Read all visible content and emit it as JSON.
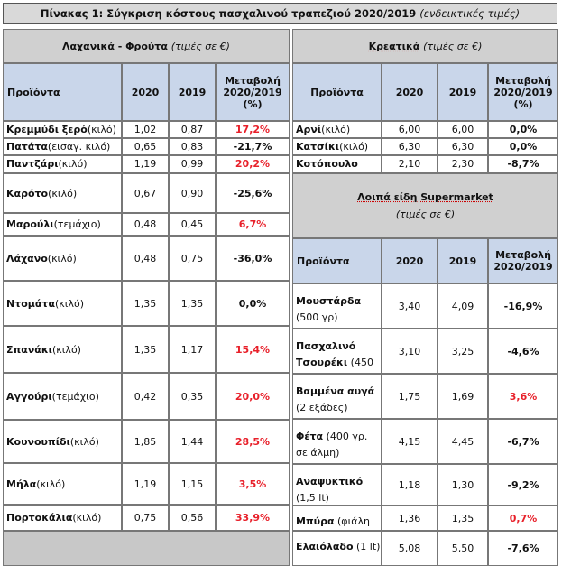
{
  "title": {
    "main": "Πίνακας 1: Σύγκριση κόστους πασχαλινού τραπεζιού 2020/2019",
    "note": "(ενδεικτικές τιμές)"
  },
  "left": {
    "header": "Λαχανικά - Φρούτα",
    "header_note": "(τιμές σε €)",
    "col_product": "Προϊόντα",
    "col_2020": "2020",
    "col_2019": "2019",
    "col_change": "Μεταβολή 2020/2019 (%)",
    "rows": [
      {
        "name": "Κρεμμύδι ξερό",
        "unit": "(κιλό)",
        "v2020": "1,02",
        "v2019": "0,87",
        "change": "17,2%",
        "color": "#e8202a"
      },
      {
        "name": "Πατάτα",
        "unit": "(εισαγ. κιλό)",
        "v2020": "0,65",
        "v2019": "0,83",
        "change": "-21,7%",
        "color": "#111111"
      },
      {
        "name": "Παντζάρι",
        "unit": "(κιλό)",
        "v2020": "1,19",
        "v2019": "0,99",
        "change": "20,2%",
        "color": "#e8202a"
      },
      {
        "name": "Καρότο",
        "unit": "(κιλό)",
        "v2020": "0,67",
        "v2019": "0,90",
        "change": "-25,6%",
        "color": "#111111"
      },
      {
        "name": "Μαρούλι",
        "unit": "(τεμάχιο)",
        "v2020": "0,48",
        "v2019": "0,45",
        "change": "6,7%",
        "color": "#e8202a"
      },
      {
        "name": "Λάχανο",
        "unit": "(κιλό)",
        "v2020": "0,48",
        "v2019": "0,75",
        "change": "-36,0%",
        "color": "#111111"
      },
      {
        "name": "Ντομάτα",
        "unit": "(κιλό)",
        "v2020": "1,35",
        "v2019": "1,35",
        "change": "0,0%",
        "color": "#111111"
      },
      {
        "name": "Σπανάκι",
        "unit": "(κιλό)",
        "v2020": "1,35",
        "v2019": "1,17",
        "change": "15,4%",
        "color": "#e8202a"
      },
      {
        "name": "Αγγούρι",
        "unit": "(τεμάχιο)",
        "v2020": "0,42",
        "v2019": "0,35",
        "change": "20,0%",
        "color": "#e8202a"
      },
      {
        "name": "Κουνουπίδι",
        "unit": "(κιλό)",
        "v2020": "1,85",
        "v2019": "1,44",
        "change": "28,5%",
        "color": "#e8202a"
      },
      {
        "name": "Μήλα",
        "unit": "(κιλό)",
        "v2020": "1,19",
        "v2019": "1,15",
        "change": "3,5%",
        "color": "#e8202a"
      },
      {
        "name": "Πορτοκάλια",
        "unit": "(κιλό)",
        "v2020": "0,75",
        "v2019": "0,56",
        "change": "33,9%",
        "color": "#e8202a"
      }
    ]
  },
  "meat": {
    "header": "Κρεατικά",
    "header_note": "(τιμές σε €)",
    "col_product": "Προϊόντα",
    "col_2020": "2020",
    "col_2019": "2019",
    "col_change": "Μεταβολή 2020/2019 (%)",
    "rows": [
      {
        "name": "Αρνί",
        "unit": "(κιλό)",
        "v2020": "6,00",
        "v2019": "6,00",
        "change": "0,0%",
        "color": "#111111"
      },
      {
        "name": "Κατσίκι",
        "unit": "(κιλό)",
        "v2020": "6,30",
        "v2019": "6,30",
        "change": "0,0%",
        "color": "#111111"
      },
      {
        "name": "Κοτόπουλο",
        "unit": "",
        "v2020": "2,10",
        "v2019": "2,30",
        "change": "-8,7%",
        "color": "#111111"
      }
    ]
  },
  "super": {
    "header": "Λοιπά είδη Supermarket",
    "header_note": "(τιμές σε €)",
    "col_product": "Προϊόντα",
    "col_2020": "2020",
    "col_2019": "2019",
    "col_change": "Μεταβολή 2020/2019",
    "rows": [
      {
        "name": "Μουστάρδα",
        "unit": "(500 γρ)",
        "v2020": "3,40",
        "v2019": "4,09",
        "change": "-16,9%",
        "color": "#111111"
      },
      {
        "name": "Πασχαλινό Τσουρέκι",
        "unit": "(450",
        "v2020": "3,10",
        "v2019": "3,25",
        "change": "-4,6%",
        "color": "#111111"
      },
      {
        "name": "Βαμμένα αυγά",
        "unit": "(2 εξάδες)",
        "v2020": "1,75",
        "v2019": "1,69",
        "change": "3,6%",
        "color": "#e8202a"
      },
      {
        "name": "Φέτα",
        "unit": "(400 γρ. σε άλμη)",
        "v2020": "4,15",
        "v2019": "4,45",
        "change": "-6,7%",
        "color": "#111111"
      },
      {
        "name": "Αναψυκτικό",
        "unit": "(1,5 lt)",
        "v2020": "1,18",
        "v2019": "1,30",
        "change": "-9,2%",
        "color": "#111111"
      },
      {
        "name": "Μπύρα",
        "unit": "(φιάλη",
        "v2020": "1,36",
        "v2019": "1,35",
        "change": "0,7%",
        "color": "#e8202a"
      },
      {
        "name": "Ελαιόλαδο",
        "unit": "(1 lt)",
        "v2020": "5,08",
        "v2019": "5,50",
        "change": "-7,6%",
        "color": "#111111"
      }
    ]
  }
}
